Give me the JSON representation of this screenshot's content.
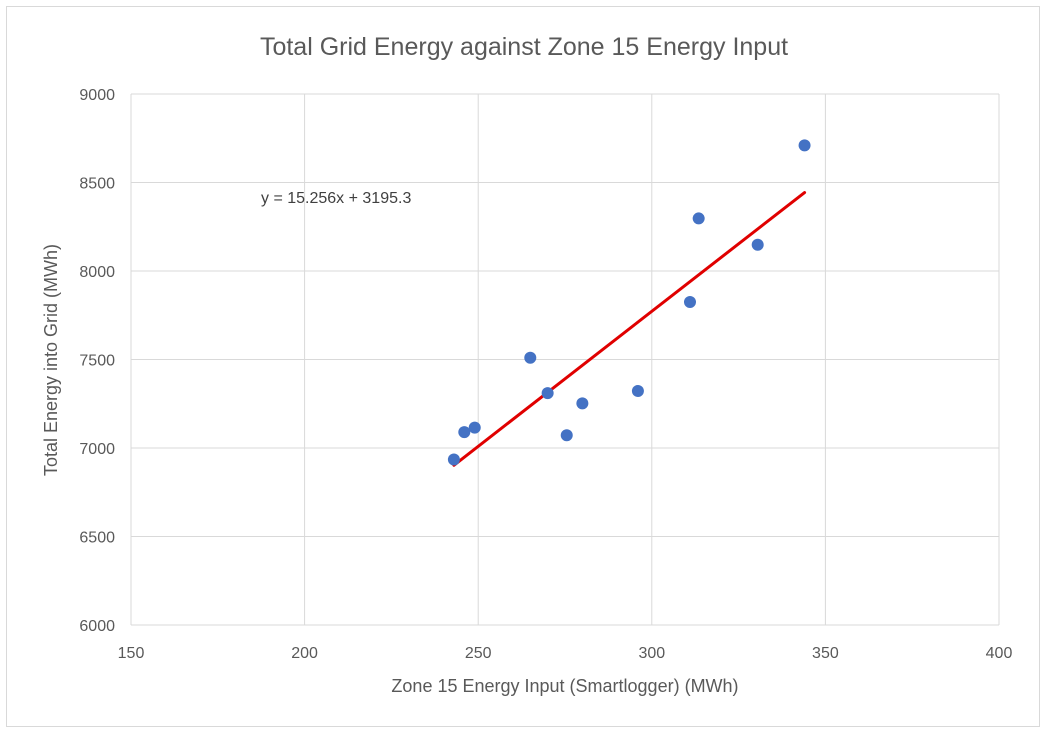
{
  "chart_data": {
    "type": "scatter",
    "title": "Total Grid Energy against Zone 15 Energy Input",
    "xlabel": "Zone 15 Energy Input (Smartlogger) (MWh)",
    "ylabel": "Total Energy into Grid (MWh)",
    "xlim": [
      150,
      400
    ],
    "ylim": [
      6000,
      9000
    ],
    "x_ticks": [
      "150",
      "200",
      "250",
      "300",
      "350",
      "400"
    ],
    "y_ticks": [
      "6000",
      "6500",
      "7000",
      "7500",
      "8000",
      "8500",
      "9000"
    ],
    "grid": true,
    "points": [
      {
        "x": 243,
        "y": 6935
      },
      {
        "x": 246,
        "y": 7090
      },
      {
        "x": 249,
        "y": 7115
      },
      {
        "x": 265,
        "y": 7510
      },
      {
        "x": 270,
        "y": 7310
      },
      {
        "x": 275.5,
        "y": 7072
      },
      {
        "x": 280,
        "y": 7252
      },
      {
        "x": 296,
        "y": 7322
      },
      {
        "x": 311,
        "y": 7825
      },
      {
        "x": 313.5,
        "y": 8297
      },
      {
        "x": 330.5,
        "y": 8148
      },
      {
        "x": 344,
        "y": 8710
      }
    ],
    "trendline": {
      "slope": 15.256,
      "intercept": 3195.3,
      "x_range": [
        243,
        344
      ],
      "equation": "y = 15.256x + 3195.3"
    },
    "colors": {
      "marker": "#4472c4",
      "trendline": "#e00000",
      "grid": "#d9d9d9",
      "text": "#595959"
    }
  }
}
